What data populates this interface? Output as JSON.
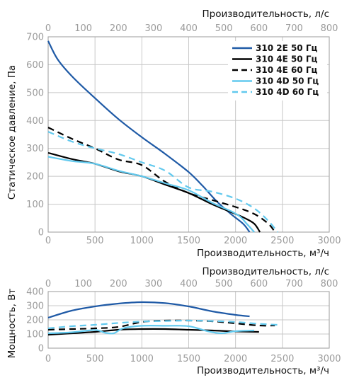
{
  "colors": {
    "2E50": "#1f5aa6",
    "4E50": "#000000",
    "4E60": "#000000",
    "4D50": "#62c9ee",
    "4D60": "#62c9ee"
  },
  "chart_data": [
    {
      "type": "line",
      "x_unit_top_label": "Производительность, л/с",
      "xlabel": "Производительность, м³/ч",
      "ylabel": "Статическое давление, Па",
      "xlim": [
        0,
        3000
      ],
      "xlim_top": [
        0,
        800
      ],
      "ylim": [
        0,
        700
      ],
      "x_ticks": [
        "0",
        "500",
        "1000",
        "1500",
        "2000",
        "2500",
        "3000"
      ],
      "x_top_ticks": [
        "0",
        "100",
        "200",
        "300",
        "400",
        "500",
        "600",
        "700",
        "800"
      ],
      "y_ticks": [
        "0",
        "100",
        "200",
        "300",
        "400",
        "500",
        "600",
        "700"
      ],
      "grid": true,
      "legend_position": "top-right",
      "series": [
        {
          "name": "310 2E 50 Гц",
          "color_key": "2E50",
          "dash": "solid",
          "x": [
            0,
            100,
            250,
            500,
            750,
            1000,
            1250,
            1500,
            1650,
            1800,
            1950,
            2080,
            2150
          ],
          "y": [
            685,
            620,
            560,
            480,
            405,
            340,
            280,
            215,
            165,
            110,
            65,
            30,
            0
          ]
        },
        {
          "name": "310 4E 50 Гц",
          "color_key": "4E50",
          "dash": "solid",
          "x": [
            0,
            250,
            500,
            750,
            1000,
            1250,
            1500,
            1750,
            2000,
            2100,
            2200,
            2260
          ],
          "y": [
            284,
            262,
            245,
            218,
            200,
            170,
            140,
            100,
            65,
            50,
            30,
            0
          ]
        },
        {
          "name": "310 4E 60 Гц",
          "color_key": "4E60",
          "dash": "dash",
          "x": [
            0,
            250,
            500,
            750,
            1000,
            1250,
            1500,
            1750,
            2000,
            2200,
            2350,
            2420
          ],
          "y": [
            375,
            335,
            300,
            260,
            240,
            180,
            140,
            115,
            90,
            65,
            30,
            0
          ]
        },
        {
          "name": "310 4D 50 Гц",
          "color_key": "4D50",
          "dash": "solid",
          "x": [
            0,
            250,
            500,
            750,
            1000,
            1250,
            1500,
            1750,
            1950,
            2050,
            2120,
            2200
          ],
          "y": [
            270,
            255,
            245,
            220,
            200,
            175,
            150,
            105,
            75,
            55,
            30,
            0
          ]
        },
        {
          "name": "310 4D 60 Гц",
          "color_key": "4D60",
          "dash": "dash",
          "x": [
            0,
            250,
            500,
            750,
            1000,
            1250,
            1500,
            1750,
            2000,
            2200,
            2350,
            2450
          ],
          "y": [
            360,
            325,
            300,
            280,
            250,
            220,
            160,
            145,
            120,
            85,
            40,
            0
          ]
        }
      ]
    },
    {
      "type": "line",
      "x_unit_top_label": "Производительность, л/с",
      "xlabel": "Производительность, м³/ч",
      "ylabel": "Мощность, Вт",
      "xlim": [
        0,
        3000
      ],
      "xlim_top": [
        0,
        800
      ],
      "ylim": [
        0,
        400
      ],
      "x_ticks": [
        "0",
        "500",
        "1000",
        "1500",
        "2000",
        "2500",
        "3000"
      ],
      "x_top_ticks": [
        "0",
        "100",
        "200",
        "300",
        "400",
        "500",
        "600",
        "700",
        "800"
      ],
      "y_ticks": [
        "0",
        "100",
        "200",
        "300",
        "400"
      ],
      "grid": true,
      "series": [
        {
          "name": "310 2E 50 Гц",
          "color_key": "2E50",
          "dash": "solid",
          "x": [
            0,
            250,
            500,
            750,
            1000,
            1250,
            1500,
            1750,
            2000,
            2150
          ],
          "y": [
            215,
            265,
            295,
            315,
            325,
            318,
            295,
            260,
            235,
            225
          ]
        },
        {
          "name": "310 4E 50 Гц",
          "color_key": "4E50",
          "dash": "solid",
          "x": [
            0,
            250,
            500,
            750,
            1000,
            1250,
            1500,
            1750,
            2000,
            2250
          ],
          "y": [
            95,
            105,
            115,
            130,
            135,
            135,
            130,
            125,
            118,
            115
          ]
        },
        {
          "name": "310 4E 60 Гц",
          "color_key": "4E60",
          "dash": "dash",
          "x": [
            0,
            250,
            500,
            750,
            1000,
            1250,
            1500,
            1750,
            2000,
            2250,
            2420
          ],
          "y": [
            130,
            135,
            140,
            150,
            185,
            195,
            195,
            190,
            175,
            160,
            160
          ]
        },
        {
          "name": "310 4D 50 Гц",
          "color_key": "4D50",
          "dash": "solid",
          "x": [
            0,
            250,
            500,
            600,
            700,
            800,
            1000,
            1250,
            1500,
            1700,
            1850,
            2000,
            2200
          ],
          "y": [
            105,
            112,
            128,
            110,
            105,
            140,
            158,
            158,
            155,
            120,
            105,
            120,
            125
          ]
        },
        {
          "name": "310 4D 60 Гц",
          "color_key": "4D60",
          "dash": "dash",
          "x": [
            0,
            250,
            500,
            750,
            1000,
            1250,
            1500,
            1750,
            2000,
            2250,
            2450
          ],
          "y": [
            140,
            155,
            165,
            178,
            188,
            192,
            195,
            192,
            185,
            172,
            165
          ]
        }
      ]
    }
  ]
}
